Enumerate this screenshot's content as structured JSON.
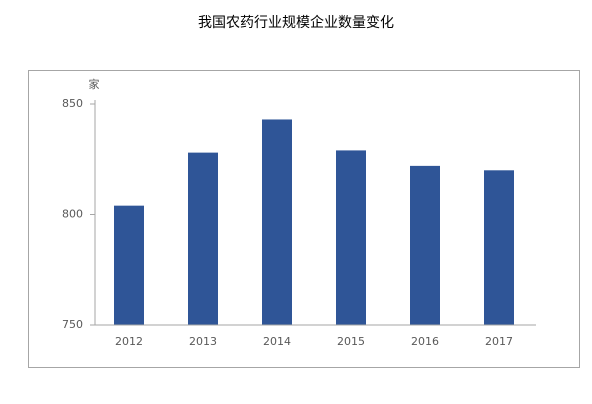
{
  "chart_data": {
    "type": "bar",
    "title": "我国农药行业规模企业数量变化",
    "unit_label": "家",
    "categories": [
      "2012",
      "2013",
      "2014",
      "2015",
      "2016",
      "2017"
    ],
    "values": [
      804,
      828,
      843,
      829,
      822,
      820
    ],
    "color": "#2f5597",
    "ylim": [
      750,
      850
    ],
    "yticks": [
      750,
      800,
      850
    ],
    "grid": false
  }
}
